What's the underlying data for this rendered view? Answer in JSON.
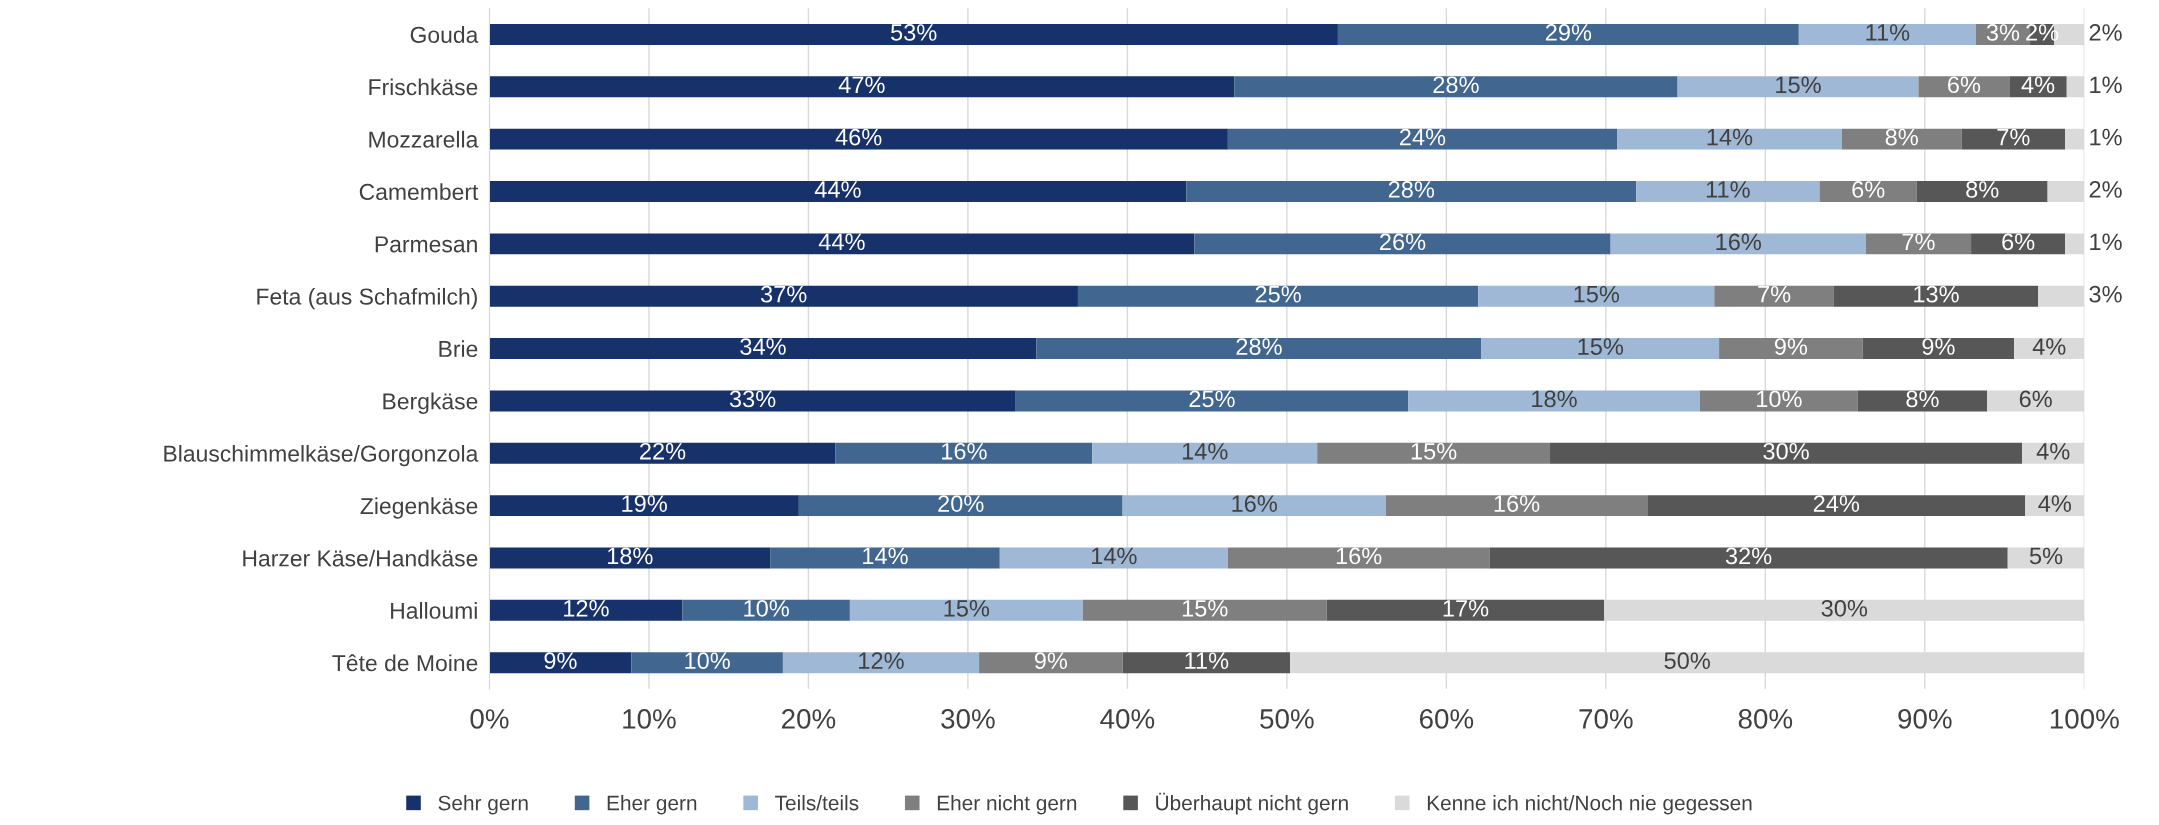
{
  "chart_data": {
    "type": "bar",
    "orientation": "horizontal",
    "stacked": true,
    "categories": [
      "Gouda",
      "Frischkäse",
      "Mozzarella",
      "Camembert",
      "Parmesan",
      "Feta (aus Schafmilch)",
      "Brie",
      "Bergkäse",
      "Blauschimmelkäse/Gorgonzola",
      "Ziegenkäse",
      "Harzer Käse/Handkäse",
      "Halloumi",
      "Tête de Moine"
    ],
    "series": [
      {
        "name": "Sehr gern",
        "color": "#17316a",
        "values": [
          53.2,
          46.7,
          46.3,
          43.7,
          44.2,
          36.9,
          34.3,
          33.0,
          21.7,
          19.4,
          17.6,
          12.1,
          8.9
        ],
        "value_labels": [
          "53%",
          "47%",
          "46%",
          "44%",
          "44%",
          "37%",
          "34%",
          "33%",
          "22%",
          "19%",
          "18%",
          "12%",
          "9%"
        ]
      },
      {
        "name": "Eher gern",
        "color": "#41668f",
        "values": [
          28.9,
          27.8,
          24.4,
          28.2,
          26.1,
          25.1,
          27.9,
          24.6,
          16.1,
          20.3,
          14.4,
          10.5,
          9.5
        ],
        "value_labels": [
          "29%",
          "28%",
          "24%",
          "28%",
          "26%",
          "25%",
          "28%",
          "25%",
          "16%",
          "20%",
          "14%",
          "10%",
          "10%"
        ]
      },
      {
        "name": "Teils/teils",
        "color": "#9fb8d6",
        "values": [
          11.1,
          15.1,
          14.1,
          11.5,
          16.0,
          14.8,
          14.9,
          18.3,
          14.1,
          16.5,
          14.3,
          14.6,
          12.3
        ],
        "value_labels": [
          "11%",
          "15%",
          "14%",
          "11%",
          "16%",
          "15%",
          "15%",
          "18%",
          "14%",
          "16%",
          "14%",
          "15%",
          "12%"
        ]
      },
      {
        "name": "Eher nicht gern",
        "color": "#7f7f7f",
        "values": [
          3.4,
          5.7,
          7.5,
          6.1,
          6.6,
          7.5,
          9.0,
          9.9,
          14.6,
          16.4,
          16.4,
          15.3,
          9.0
        ],
        "value_labels": [
          "3%",
          "6%",
          "8%",
          "6%",
          "7%",
          "7%",
          "9%",
          "10%",
          "15%",
          "16%",
          "16%",
          "15%",
          "9%"
        ]
      },
      {
        "name": "Überhaupt nicht gern",
        "color": "#575757",
        "values": [
          1.5,
          3.6,
          6.5,
          8.2,
          5.9,
          12.8,
          9.5,
          8.1,
          29.6,
          23.7,
          32.5,
          17.4,
          10.5
        ],
        "value_labels": [
          "2%",
          "4%",
          "7%",
          "8%",
          "6%",
          "13%",
          "9%",
          "8%",
          "30%",
          "24%",
          "32%",
          "17%",
          "11%"
        ]
      },
      {
        "name": "Kenne ich nicht/Noch nie gegessen",
        "color": "#d9dad9",
        "values": [
          1.9,
          1.1,
          1.2,
          2.3,
          1.2,
          2.9,
          4.4,
          6.1,
          3.9,
          3.7,
          4.8,
          30.1,
          49.8
        ],
        "value_labels": [
          "2%",
          "1%",
          "1%",
          "2%",
          "1%",
          "3%",
          "4%",
          "6%",
          "4%",
          "4%",
          "5%",
          "30%",
          "50%"
        ]
      }
    ],
    "xlim": [
      0,
      100
    ],
    "xticks": [
      {
        "value": 0,
        "label": "0%"
      },
      {
        "value": 10,
        "label": "10%"
      },
      {
        "value": 20,
        "label": "20%"
      },
      {
        "value": 30,
        "label": "30%"
      },
      {
        "value": 40,
        "label": "40%"
      },
      {
        "value": 50,
        "label": "50%"
      },
      {
        "value": 60,
        "label": "60%"
      },
      {
        "value": 70,
        "label": "70%"
      },
      {
        "value": 80,
        "label": "80%"
      },
      {
        "value": 90,
        "label": "90%"
      },
      {
        "value": 100,
        "label": "100%"
      }
    ],
    "grid": "x",
    "legend": "bottom"
  }
}
